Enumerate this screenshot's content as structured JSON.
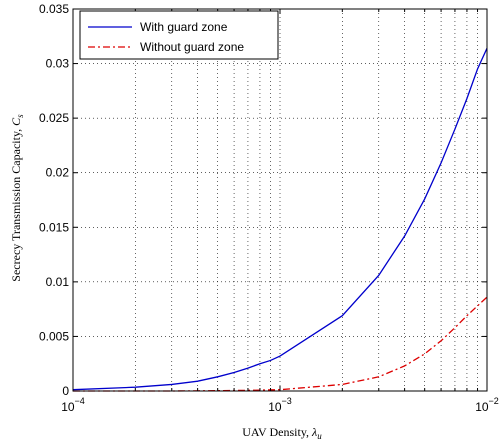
{
  "chart_data": {
    "type": "line",
    "xscale": "log",
    "xlim": [
      0.0001,
      0.01
    ],
    "ylim": [
      0,
      0.035
    ],
    "grid": true,
    "legend_position": "top-left",
    "xlabel": "UAV Density, ",
    "xlabel_symbol": "λ",
    "xlabel_sub": "u",
    "ylabel": "Secrecy Transmission Capacity, ",
    "ylabel_symbol": "C",
    "ylabel_sub": "s",
    "x_ticks": [
      {
        "value": 0.0001,
        "base": "10",
        "exp": "−4"
      },
      {
        "value": 0.001,
        "base": "10",
        "exp": "−3"
      },
      {
        "value": 0.01,
        "base": "10",
        "exp": "−2"
      }
    ],
    "y_ticks": [
      {
        "value": 0,
        "label": "0"
      },
      {
        "value": 0.005,
        "label": "0.005"
      },
      {
        "value": 0.01,
        "label": "0.01"
      },
      {
        "value": 0.015,
        "label": "0.015"
      },
      {
        "value": 0.02,
        "label": "0.02"
      },
      {
        "value": 0.025,
        "label": "0.025"
      },
      {
        "value": 0.03,
        "label": "0.03"
      },
      {
        "value": 0.035,
        "label": "0.035"
      }
    ],
    "series": [
      {
        "name": "With guard zone",
        "color": "#0000cc",
        "dash": "solid",
        "x": [
          0.0001,
          0.0002,
          0.0003,
          0.0004,
          0.0005,
          0.0006,
          0.0007,
          0.0008,
          0.0009,
          0.001,
          0.002,
          0.003,
          0.004,
          0.005,
          0.006,
          0.007,
          0.008,
          0.009,
          0.01
        ],
        "y": [
          0.00012,
          0.00035,
          0.0006,
          0.0009,
          0.0013,
          0.0017,
          0.0021,
          0.0025,
          0.0028,
          0.0032,
          0.0069,
          0.0106,
          0.0142,
          0.0176,
          0.0209,
          0.024,
          0.0268,
          0.0295,
          0.0314
        ]
      },
      {
        "name": "Without guard zone",
        "color": "#dd0000",
        "dash": "dashdot",
        "x": [
          0.0001,
          0.0003,
          0.0005,
          0.0007,
          0.001,
          0.002,
          0.003,
          0.004,
          0.005,
          0.006,
          0.007,
          0.008,
          0.009,
          0.01
        ],
        "y": [
          0,
          0,
          3e-05,
          6e-05,
          0.00012,
          0.0006,
          0.0013,
          0.0023,
          0.0034,
          0.0046,
          0.0058,
          0.0069,
          0.0078,
          0.0086
        ]
      }
    ]
  }
}
